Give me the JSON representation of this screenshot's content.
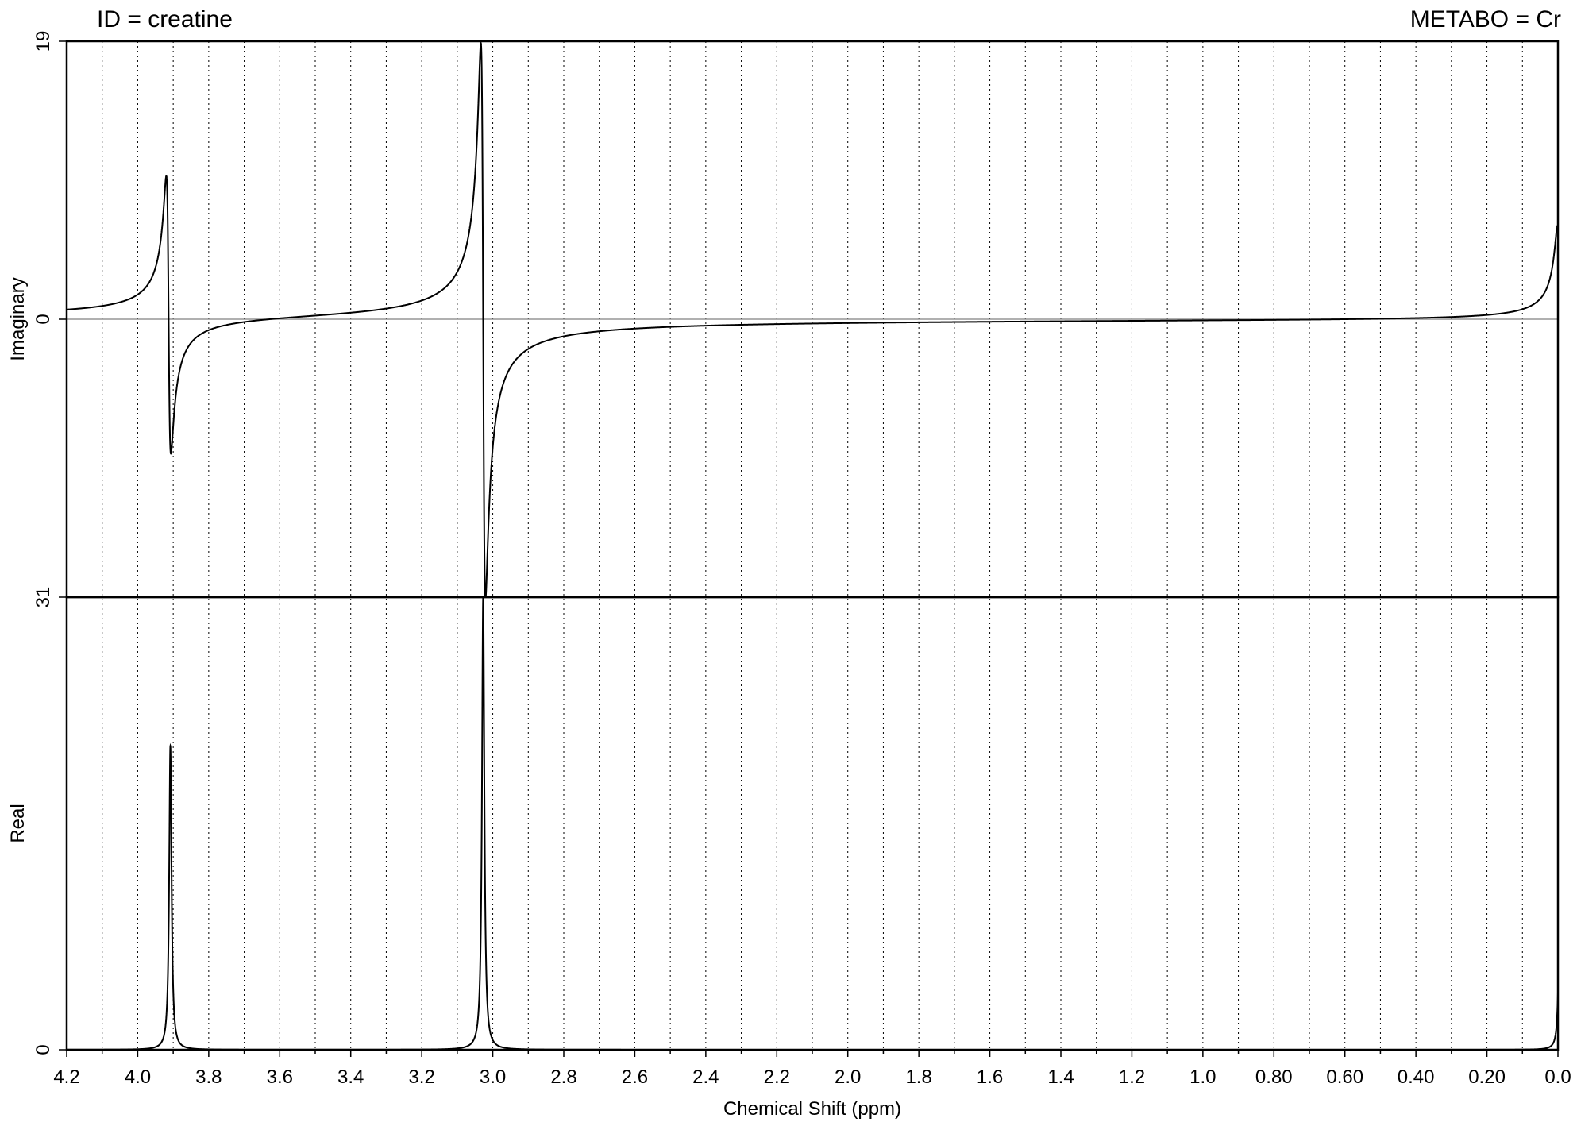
{
  "header": {
    "left": "ID = creatine",
    "right": "METABO = Cr"
  },
  "chart_data": {
    "type": "line",
    "xlabel": "Chemical Shift (ppm)",
    "xlim": [
      4.2,
      0.0
    ],
    "x_reversed": true,
    "grid": "vertical dotted every 0.1 ppm",
    "x_ticks": [
      {
        "value": 4.2,
        "label": "4.2"
      },
      {
        "value": 4.0,
        "label": "4.0"
      },
      {
        "value": 3.8,
        "label": "3.8"
      },
      {
        "value": 3.6,
        "label": "3.6"
      },
      {
        "value": 3.4,
        "label": "3.4"
      },
      {
        "value": 3.2,
        "label": "3.2"
      },
      {
        "value": 3.0,
        "label": "3.0"
      },
      {
        "value": 2.8,
        "label": "2.8"
      },
      {
        "value": 2.6,
        "label": "2.6"
      },
      {
        "value": 2.4,
        "label": "2.4"
      },
      {
        "value": 2.2,
        "label": "2.2"
      },
      {
        "value": 2.0,
        "label": "2.0"
      },
      {
        "value": 1.8,
        "label": "1.8"
      },
      {
        "value": 1.6,
        "label": "1.6"
      },
      {
        "value": 1.4,
        "label": "1.4"
      },
      {
        "value": 1.2,
        "label": "1.2"
      },
      {
        "value": 1.0,
        "label": "1.0"
      },
      {
        "value": 0.8,
        "label": "0.80"
      },
      {
        "value": 0.6,
        "label": "0.60"
      },
      {
        "value": 0.4,
        "label": "0.40"
      },
      {
        "value": 0.2,
        "label": "0.20"
      },
      {
        "value": 0.0,
        "label": "0.0"
      }
    ],
    "panels": [
      {
        "id": "imaginary",
        "ylabel": "Imaginary",
        "ylim": [
          -19,
          19
        ],
        "y_tick_labels": [
          "19",
          "0"
        ],
        "peaks": [
          {
            "position": 3.913,
            "amplitude": 9.5,
            "width": 0.0065
          },
          {
            "position": 3.027,
            "amplitude": 19.0,
            "width": 0.0065
          },
          {
            "position": -0.005,
            "amplitude": 6.5,
            "width": 0.0065
          }
        ]
      },
      {
        "id": "real",
        "ylabel": "Real",
        "ylim": [
          0,
          31
        ],
        "y_tick_labels": [
          "31",
          "0"
        ],
        "peaks": [
          {
            "position": 3.908,
            "amplitude": 20.8,
            "width": 0.004
          },
          {
            "position": 3.027,
            "amplitude": 31.0,
            "width": 0.004
          },
          {
            "position": -0.005,
            "amplitude": 10.0,
            "width": 0.004
          }
        ]
      }
    ]
  }
}
